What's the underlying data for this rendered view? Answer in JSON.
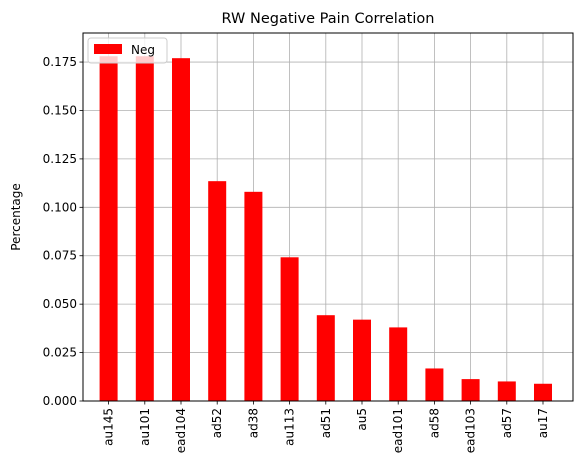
{
  "chart_data": {
    "type": "bar",
    "title": "RW Negative Pain Correlation",
    "xlabel": "",
    "ylabel": "Percentage",
    "categories": [
      "au145",
      "au101",
      "ead104",
      "ad52",
      "ad38",
      "au113",
      "ad51",
      "au5",
      "ead101",
      "ad58",
      "ead103",
      "ad57",
      "au17"
    ],
    "series": [
      {
        "name": "Neg",
        "values": [
          0.178,
          0.178,
          0.177,
          0.1135,
          0.108,
          0.0742,
          0.0443,
          0.042,
          0.038,
          0.0168,
          0.0113,
          0.0101,
          0.0089
        ],
        "color": "#ff0000"
      }
    ],
    "ylim": [
      0,
      0.19
    ],
    "yticks": [
      0.0,
      0.025,
      0.05,
      0.075,
      0.1,
      0.125,
      0.15,
      0.175
    ],
    "ytick_labels": [
      "0.000",
      "0.025",
      "0.050",
      "0.075",
      "0.100",
      "0.125",
      "0.150",
      "0.175"
    ],
    "grid": true,
    "legend_position": "top-left"
  }
}
